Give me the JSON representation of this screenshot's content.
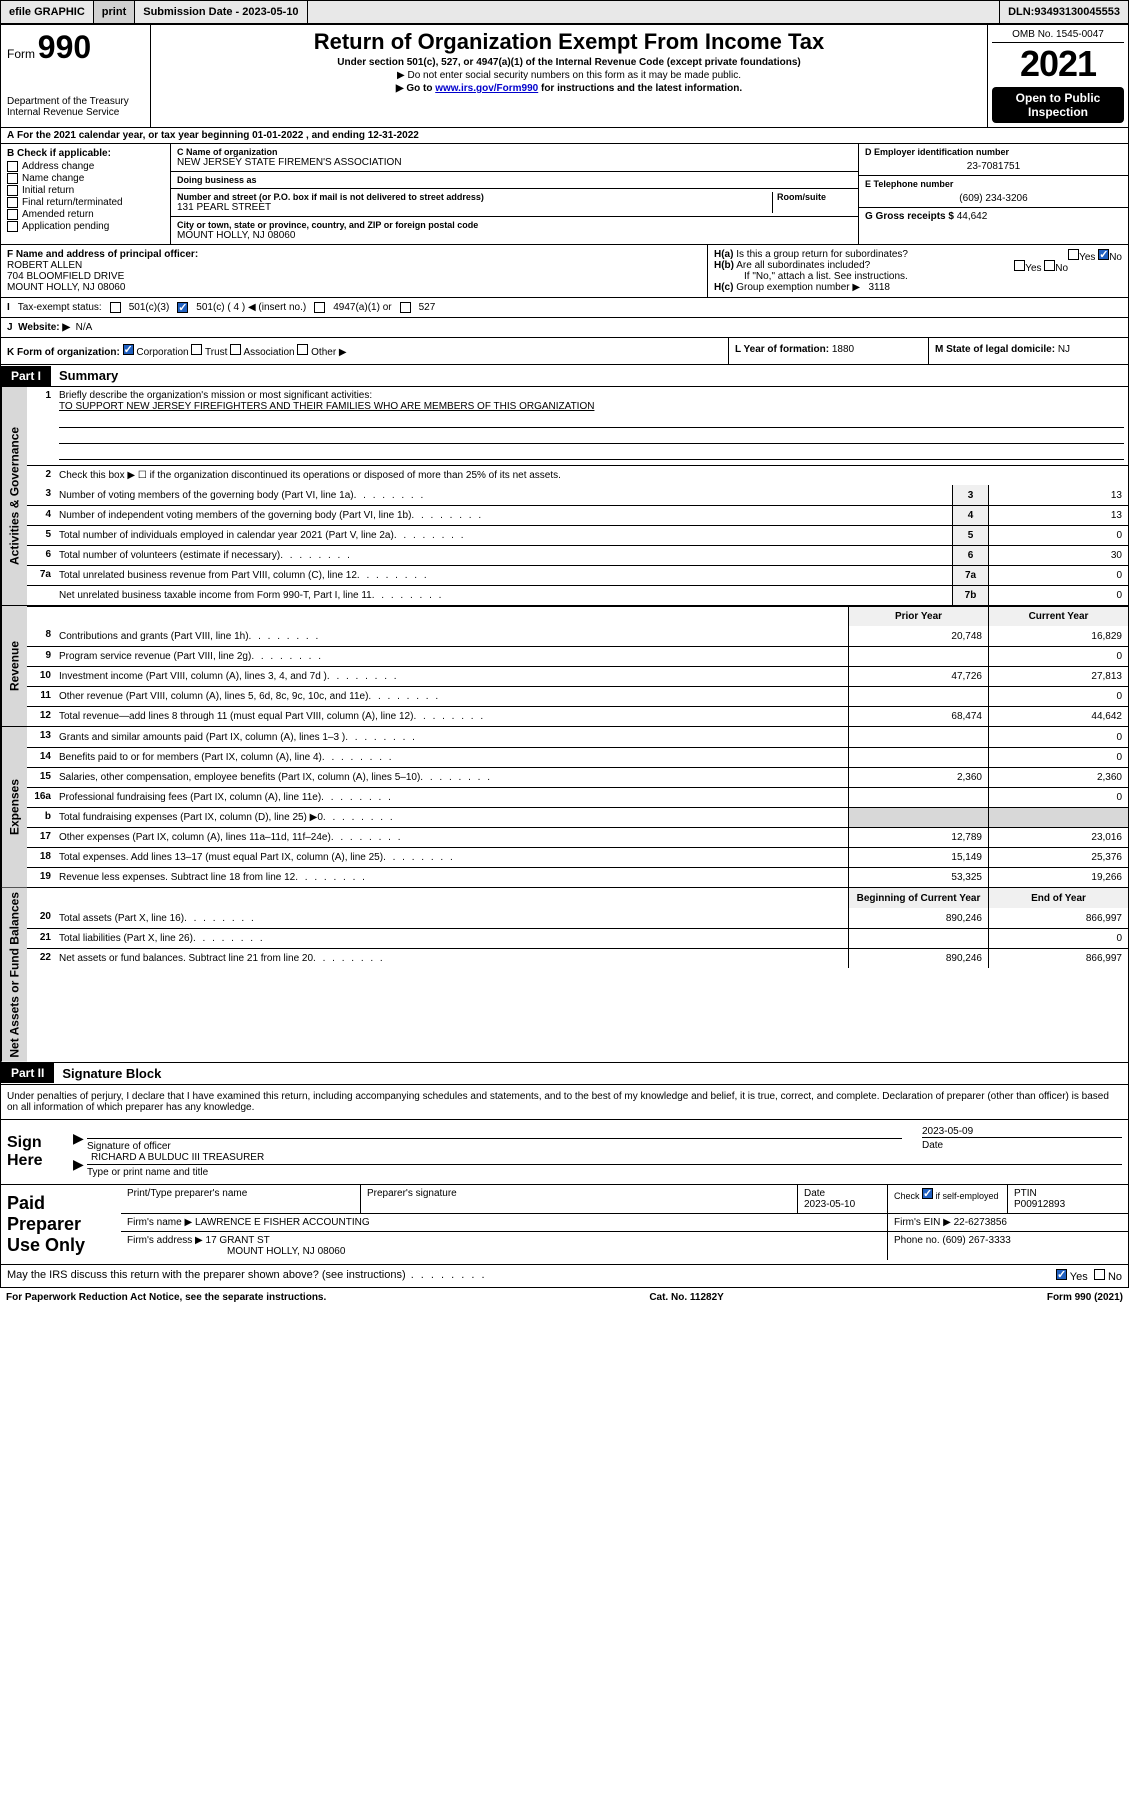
{
  "topbar": {
    "efile": "efile GRAPHIC",
    "print": "print",
    "sub_label": "Submission Date - ",
    "sub_date": "2023-05-10",
    "dln_label": "DLN: ",
    "dln": "93493130045553"
  },
  "header": {
    "form_label": "Form",
    "form_num": "990",
    "dept": "Department of the Treasury",
    "irs": "Internal Revenue Service",
    "title": "Return of Organization Exempt From Income Tax",
    "sub1": "Under section 501(c), 527, or 4947(a)(1) of the Internal Revenue Code (except private foundations)",
    "sub2": "▶ Do not enter social security numbers on this form as it may be made public.",
    "sub3_pre": "▶ Go to ",
    "sub3_link": "www.irs.gov/Form990",
    "sub3_post": " for instructions and the latest information.",
    "omb": "OMB No. 1545-0047",
    "year": "2021",
    "open": "Open to Public Inspection"
  },
  "row_a": "For the 2021 calendar year, or tax year beginning 01-01-2022   , and ending 12-31-2022",
  "col_b": {
    "hdr": "B Check if applicable:",
    "items": [
      "Address change",
      "Name change",
      "Initial return",
      "Final return/terminated",
      "Amended return",
      "Application pending"
    ]
  },
  "block_c": {
    "name_lbl": "C Name of organization",
    "name": "NEW JERSEY STATE FIREMEN'S ASSOCIATION",
    "dba_lbl": "Doing business as",
    "dba": "",
    "addr_lbl": "Number and street (or P.O. box if mail is not delivered to street address)",
    "room_lbl": "Room/suite",
    "addr": "131 PEARL STREET",
    "city_lbl": "City or town, state or province, country, and ZIP or foreign postal code",
    "city": "MOUNT HOLLY, NJ  08060"
  },
  "block_d": {
    "lbl": "D Employer identification number",
    "val": "23-7081751"
  },
  "block_e": {
    "lbl": "E Telephone number",
    "val": "(609) 234-3206"
  },
  "block_g": {
    "lbl": "G Gross receipts $ ",
    "val": "44,642"
  },
  "block_f": {
    "lbl": "F Name and address of principal officer:",
    "name": "ROBERT ALLEN",
    "addr1": "704 BLOOMFIELD DRIVE",
    "addr2": "MOUNT HOLLY, NJ  08060"
  },
  "block_h": {
    "ha": "Is this a group return for subordinates?",
    "hb": "Are all subordinates included?",
    "hnote": "If \"No,\" attach a list. See instructions.",
    "hc_lbl": "Group exemption number ▶",
    "hc_val": "3118",
    "yes": "Yes",
    "no": "No"
  },
  "row_i": {
    "lbl": "Tax-exempt status:",
    "o1": "501(c)(3)",
    "o2": "501(c) ( 4 ) ◀ (insert no.)",
    "o3": "4947(a)(1) or",
    "o4": "527"
  },
  "row_j": {
    "lbl": "Website: ▶",
    "val": "N/A"
  },
  "row_k": {
    "lbl": "K Form of organization:",
    "o1": "Corporation",
    "o2": "Trust",
    "o3": "Association",
    "o4": "Other ▶",
    "l_lbl": "L Year of formation: ",
    "l_val": "1880",
    "m_lbl": "M State of legal domicile: ",
    "m_val": "NJ"
  },
  "part1": {
    "hdr": "Part I",
    "title": "Summary",
    "vtab_gov": "Activities & Governance",
    "vtab_rev": "Revenue",
    "vtab_exp": "Expenses",
    "vtab_net": "Net Assets or Fund Balances",
    "l1": "Briefly describe the organization's mission or most significant activities:",
    "mission": "TO SUPPORT NEW JERSEY FIREFIGHTERS AND THEIR FAMILIES WHO ARE MEMBERS OF THIS ORGANIZATION",
    "l2": "Check this box ▶ ☐  if the organization discontinued its operations or disposed of more than 25% of its net assets.",
    "lines_gov": [
      {
        "n": "3",
        "t": "Number of voting members of the governing body (Part VI, line 1a)",
        "b": "3",
        "v": "13"
      },
      {
        "n": "4",
        "t": "Number of independent voting members of the governing body (Part VI, line 1b)",
        "b": "4",
        "v": "13"
      },
      {
        "n": "5",
        "t": "Total number of individuals employed in calendar year 2021 (Part V, line 2a)",
        "b": "5",
        "v": "0"
      },
      {
        "n": "6",
        "t": "Total number of volunteers (estimate if necessary)",
        "b": "6",
        "v": "30"
      },
      {
        "n": "7a",
        "t": "Total unrelated business revenue from Part VIII, column (C), line 12",
        "b": "7a",
        "v": "0"
      },
      {
        "n": "",
        "t": "Net unrelated business taxable income from Form 990-T, Part I, line 11",
        "b": "7b",
        "v": "0"
      }
    ],
    "col_hdrs": {
      "prior": "Prior Year",
      "current": "Current Year",
      "boy": "Beginning of Current Year",
      "eoy": "End of Year"
    },
    "lines_rev": [
      {
        "n": "8",
        "t": "Contributions and grants (Part VIII, line 1h)",
        "p": "20,748",
        "c": "16,829"
      },
      {
        "n": "9",
        "t": "Program service revenue (Part VIII, line 2g)",
        "p": "",
        "c": "0"
      },
      {
        "n": "10",
        "t": "Investment income (Part VIII, column (A), lines 3, 4, and 7d )",
        "p": "47,726",
        "c": "27,813"
      },
      {
        "n": "11",
        "t": "Other revenue (Part VIII, column (A), lines 5, 6d, 8c, 9c, 10c, and 11e)",
        "p": "",
        "c": "0"
      },
      {
        "n": "12",
        "t": "Total revenue—add lines 8 through 11 (must equal Part VIII, column (A), line 12)",
        "p": "68,474",
        "c": "44,642"
      }
    ],
    "lines_exp": [
      {
        "n": "13",
        "t": "Grants and similar amounts paid (Part IX, column (A), lines 1–3 )",
        "p": "",
        "c": "0"
      },
      {
        "n": "14",
        "t": "Benefits paid to or for members (Part IX, column (A), line 4)",
        "p": "",
        "c": "0"
      },
      {
        "n": "15",
        "t": "Salaries, other compensation, employee benefits (Part IX, column (A), lines 5–10)",
        "p": "2,360",
        "c": "2,360"
      },
      {
        "n": "16a",
        "t": "Professional fundraising fees (Part IX, column (A), line 11e)",
        "p": "",
        "c": "0"
      },
      {
        "n": "b",
        "t": "Total fundraising expenses (Part IX, column (D), line 25) ▶0",
        "p": "shade",
        "c": "shade"
      },
      {
        "n": "17",
        "t": "Other expenses (Part IX, column (A), lines 11a–11d, 11f–24e)",
        "p": "12,789",
        "c": "23,016"
      },
      {
        "n": "18",
        "t": "Total expenses. Add lines 13–17 (must equal Part IX, column (A), line 25)",
        "p": "15,149",
        "c": "25,376"
      },
      {
        "n": "19",
        "t": "Revenue less expenses. Subtract line 18 from line 12",
        "p": "53,325",
        "c": "19,266"
      }
    ],
    "lines_net": [
      {
        "n": "20",
        "t": "Total assets (Part X, line 16)",
        "p": "890,246",
        "c": "866,997"
      },
      {
        "n": "21",
        "t": "Total liabilities (Part X, line 26)",
        "p": "",
        "c": "0"
      },
      {
        "n": "22",
        "t": "Net assets or fund balances. Subtract line 21 from line 20",
        "p": "890,246",
        "c": "866,997"
      }
    ]
  },
  "part2": {
    "hdr": "Part II",
    "title": "Signature Block",
    "decl": "Under penalties of perjury, I declare that I have examined this return, including accompanying schedules and statements, and to the best of my knowledge and belief, it is true, correct, and complete. Declaration of preparer (other than officer) is based on all information of which preparer has any knowledge.",
    "sign_here": "Sign Here",
    "sig_officer": "Signature of officer",
    "sig_date_lbl": "Date",
    "sig_date": "2023-05-09",
    "officer_name": "RICHARD A BULDUC III TREASURER",
    "type_name": "Type or print name and title",
    "paid": "Paid Preparer Use Only",
    "prep_name_lbl": "Print/Type preparer's name",
    "prep_sig_lbl": "Preparer's signature",
    "prep_date_lbl": "Date",
    "prep_date": "2023-05-10",
    "check_if": "Check ☑ if self-employed",
    "ptin_lbl": "PTIN",
    "ptin": "P00912893",
    "firm_name_lbl": "Firm's name    ▶ ",
    "firm_name": "LAWRENCE E FISHER ACCOUNTING",
    "firm_ein_lbl": "Firm's EIN ▶ ",
    "firm_ein": "22-6273856",
    "firm_addr_lbl": "Firm's address ▶ ",
    "firm_addr1": "17 GRANT ST",
    "firm_addr2": "MOUNT HOLLY, NJ  08060",
    "phone_lbl": "Phone no. ",
    "phone": "(609) 267-3333",
    "may_irs": "May the IRS discuss this return with the preparer shown above? (see instructions)",
    "yes": "Yes",
    "no": "No"
  },
  "footer": {
    "left": "For Paperwork Reduction Act Notice, see the separate instructions.",
    "mid": "Cat. No. 11282Y",
    "right": "Form 990 (2021)"
  }
}
